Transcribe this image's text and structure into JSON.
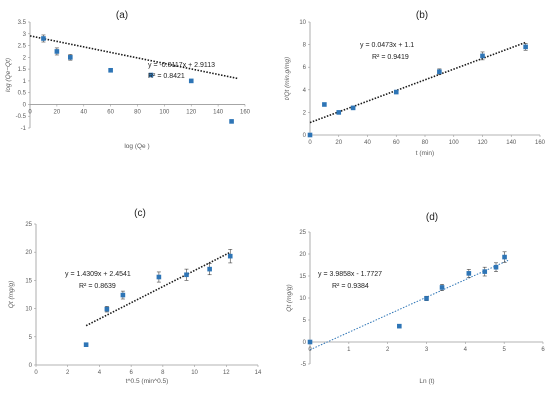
{
  "figure": {
    "marker_color": "#2e75b6",
    "errorbar_color": "#404040",
    "axis_color": "#9a9a9a",
    "grid": false,
    "legend": false
  },
  "chart_data": [
    {
      "type": "scatter",
      "panel_label": "(a)",
      "xlabel": "log (Qe )",
      "ylabel": "log (Qe−Qt)",
      "xlim": [
        0,
        160
      ],
      "ylim": [
        -1,
        3.5
      ],
      "xticks": [
        "0",
        "20",
        "40",
        "60",
        "80",
        "100",
        "120",
        "140",
        "160"
      ],
      "yticks": [
        "-1",
        "-0.5",
        "0",
        "0.5",
        "1",
        "1.5",
        "2",
        "2.5",
        "3",
        "3.5"
      ],
      "x": [
        10,
        20,
        30,
        60,
        90,
        120,
        150
      ],
      "y": [
        2.8,
        2.25,
        2.0,
        1.45,
        1.25,
        1.0,
        -0.72
      ],
      "err": [
        0.15,
        0.15,
        0.12,
        0.08,
        0.06,
        0.05,
        0.03
      ],
      "fit": {
        "style": "dotted",
        "color": "#1a1a1a",
        "slope": -0.0117,
        "intercept": 2.9113,
        "x_range": [
          0,
          155
        ]
      },
      "equation": "y = -0.0117x + 2.9113",
      "r2": "R² = 0.8421"
    },
    {
      "type": "scatter",
      "panel_label": "(b)",
      "xlabel": "t (min)",
      "ylabel": "t/Qt (min.g/mg)",
      "xlim": [
        0,
        160
      ],
      "ylim": [
        0,
        10
      ],
      "xticks": [
        "0",
        "20",
        "40",
        "60",
        "80",
        "100",
        "120",
        "140",
        "160"
      ],
      "yticks": [
        "0",
        "2",
        "4",
        "6",
        "8",
        "10"
      ],
      "x": [
        0,
        10,
        20,
        30,
        60,
        90,
        120,
        150
      ],
      "y": [
        0,
        2.7,
        2.0,
        2.4,
        3.8,
        5.6,
        7.0,
        7.8
      ],
      "err": [
        0,
        0.12,
        0.1,
        0.1,
        0.15,
        0.25,
        0.35,
        0.3
      ],
      "fit": {
        "style": "dotted",
        "color": "#1a1a1a",
        "slope": 0.0473,
        "intercept": 1.1,
        "x_range": [
          0,
          150
        ]
      },
      "equation": "y = 0.0473x + 1.1",
      "r2": "R² = 0.9419"
    },
    {
      "type": "scatter",
      "panel_label": "(c)",
      "xlabel": "t^0.5 (min^0.5)",
      "ylabel": "Qt (mg/g)",
      "xlim": [
        0,
        14
      ],
      "ylim": [
        0,
        25
      ],
      "xticks": [
        "0",
        "2",
        "4",
        "6",
        "8",
        "10",
        "12",
        "14"
      ],
      "yticks": [
        "0",
        "5",
        "10",
        "15",
        "20",
        "25"
      ],
      "x": [
        3.16,
        4.47,
        5.48,
        7.75,
        9.49,
        10.95,
        12.25
      ],
      "y": [
        3.6,
        9.9,
        12.4,
        15.6,
        16.0,
        17.0,
        19.3
      ],
      "err": [
        0,
        0.5,
        0.7,
        0.9,
        1.0,
        1.0,
        1.2
      ],
      "fit": {
        "style": "dotted",
        "color": "#1a1a1a",
        "slope": 1.4309,
        "intercept": 2.4541,
        "x_range": [
          3.16,
          12.25
        ]
      },
      "equation": "y = 1.4309x + 2.4541",
      "r2": "R² = 0.8639"
    },
    {
      "type": "scatter",
      "panel_label": "(d)",
      "xlabel": "Ln (t)",
      "ylabel": "Qt (mg/g)",
      "xlim": [
        0,
        6
      ],
      "ylim": [
        -5,
        25
      ],
      "xticks": [
        "0",
        "1",
        "2",
        "3",
        "4",
        "5",
        "6"
      ],
      "yticks": [
        "-5",
        "0",
        "5",
        "10",
        "15",
        "20",
        "25"
      ],
      "x": [
        0,
        2.3,
        3.0,
        3.4,
        4.09,
        4.5,
        4.79,
        5.01
      ],
      "y": [
        0,
        3.6,
        9.9,
        12.4,
        15.6,
        16.0,
        17.0,
        19.3
      ],
      "err": [
        0,
        0,
        0.5,
        0.7,
        0.9,
        1.0,
        1.0,
        1.2
      ],
      "fit": {
        "style": "dotted",
        "color": "#2e75b6",
        "slope": 3.9858,
        "intercept": -1.7727,
        "x_range": [
          0,
          5.1
        ]
      },
      "equation": "y = 3.9858x - 1.7727",
      "r2": "R² = 0.9384"
    }
  ]
}
